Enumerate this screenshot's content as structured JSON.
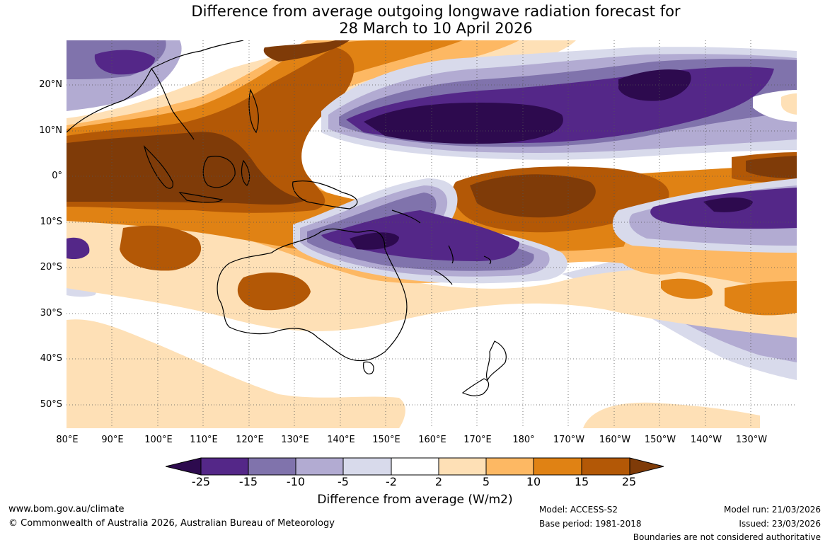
{
  "title": {
    "line1": "Difference from average outgoing longwave radiation forecast for",
    "line2": "28 March to 10 April 2026"
  },
  "axes": {
    "lat_labels": [
      "20°N",
      "10°N",
      "0°",
      "10°S",
      "20°S",
      "30°S",
      "40°S",
      "50°S"
    ],
    "lon_labels": [
      "80°E",
      "90°E",
      "100°E",
      "110°E",
      "120°E",
      "130°E",
      "140°E",
      "150°E",
      "160°E",
      "170°E",
      "180°",
      "170°W",
      "160°W",
      "150°W",
      "140°W",
      "130°W"
    ]
  },
  "legend": {
    "title": "Difference from average (W/m2)",
    "ticks": [
      "-25",
      "-15",
      "-10",
      "-5",
      "-2",
      "2",
      "5",
      "10",
      "15",
      "25"
    ],
    "colors": {
      "below_-25": "#2d0a4e",
      "-25_-15": "#542788",
      "-15_-10": "#8073ac",
      "-10_-5": "#b2abd2",
      "-5_-2": "#d8daeb",
      "-2_2": "#ffffff",
      "2_5": "#fee0b6",
      "5_10": "#fdb863",
      "10_15": "#e08214",
      "15_25": "#b35806",
      "above_25": "#7f3b08"
    }
  },
  "footer": {
    "website": "www.bom.gov.au/climate",
    "copyright": "© Commonwealth of Australia 2026, Australian Bureau of Meteorology",
    "model": "Model: ACCESS-S2",
    "base_period": "Base period: 1981-2018",
    "model_run": "Model run: 21/03/2026",
    "issued": "Issued: 23/03/2026",
    "disclaimer": "Boundaries are not considered authoritative"
  }
}
